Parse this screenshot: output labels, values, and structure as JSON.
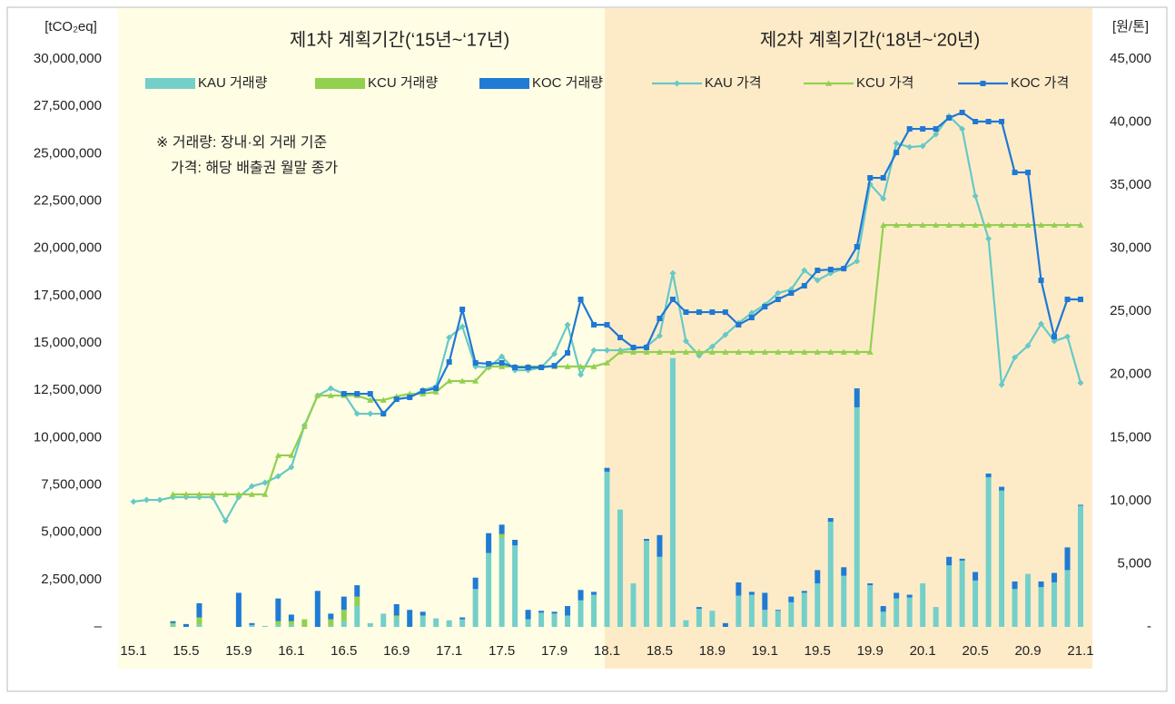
{
  "chart_data": {
    "type": "bar-line",
    "period_labels": [
      "제1차 계획기간(‘15년~‘17년)",
      "제2차 계획기간(‘18년~‘20년)"
    ],
    "y_label": "[tCO₂eq]",
    "y2_label": "[원/톤]",
    "note": [
      "※ 거래량: 장내·외 거래 기준",
      "가격: 해당 배출권 월말 종가"
    ],
    "categories": [
      "15.1",
      null,
      null,
      null,
      "15.5",
      null,
      null,
      null,
      "15.9",
      null,
      null,
      null,
      "16.1",
      null,
      null,
      null,
      "16.5",
      null,
      null,
      null,
      "16.9",
      null,
      null,
      null,
      "17.1",
      null,
      null,
      null,
      "17.5",
      null,
      null,
      null,
      "17.9",
      null,
      null,
      null,
      "18.1",
      null,
      null,
      null,
      "18.5",
      null,
      null,
      null,
      "18.9",
      null,
      null,
      null,
      "19.1",
      null,
      null,
      null,
      "19.5",
      null,
      null,
      null,
      "19.9",
      null,
      null,
      null,
      "20.1",
      null,
      null,
      null,
      "20.5",
      null,
      null,
      null,
      "20.9",
      null,
      null,
      null,
      "21.1"
    ],
    "ylim": [
      0,
      30000000
    ],
    "yticks": [
      {
        "value": 0,
        "label": "–"
      },
      {
        "value": 2500000,
        "label": "2,500,000"
      },
      {
        "value": 5000000,
        "label": "5,000,000"
      },
      {
        "value": 7500000,
        "label": "7,500,000"
      },
      {
        "value": 10000000,
        "label": "10,000,000"
      },
      {
        "value": 12500000,
        "label": "12,500,000"
      },
      {
        "value": 15000000,
        "label": "15,000,000"
      },
      {
        "value": 17500000,
        "label": "17,500,000"
      },
      {
        "value": 20000000,
        "label": "20,000,000"
      },
      {
        "value": 22500000,
        "label": "22,500,000"
      },
      {
        "value": 25000000,
        "label": "25,000,000"
      },
      {
        "value": 27500000,
        "label": "27,500,000"
      },
      {
        "value": 30000000,
        "label": "30,000,000"
      }
    ],
    "y2lim": [
      0,
      45000
    ],
    "y2ticks": [
      {
        "value": 0,
        "label": "-"
      },
      {
        "value": 5000,
        "label": "5,000"
      },
      {
        "value": 10000,
        "label": "10,000"
      },
      {
        "value": 15000,
        "label": "15,000"
      },
      {
        "value": 20000,
        "label": "20,000"
      },
      {
        "value": 25000,
        "label": "25,000"
      },
      {
        "value": 30000,
        "label": "30,000"
      },
      {
        "value": 35000,
        "label": "35,000"
      },
      {
        "value": 40000,
        "label": "40,000"
      },
      {
        "value": 45000,
        "label": "45,000"
      }
    ],
    "grid": false,
    "series": [
      {
        "name": "KAU 거래량",
        "type": "bar",
        "axis": "y",
        "color": "#74cfc9",
        "values": [
          0,
          0,
          0,
          100000,
          0,
          100000,
          0,
          0,
          0,
          100000,
          50000,
          100000,
          100000,
          0,
          0,
          50000,
          300000,
          1100000,
          200000,
          700000,
          500000,
          0,
          600000,
          450000,
          350000,
          400000,
          2000000,
          3900000,
          4700000,
          4300000,
          400000,
          750000,
          700000,
          600000,
          1400000,
          1700000,
          8200000,
          6200000,
          2300000,
          4550000,
          3700000,
          14200000,
          350000,
          950000,
          850000,
          0,
          1650000,
          1700000,
          900000,
          850000,
          1300000,
          1800000,
          2300000,
          5550000,
          2700000,
          11600000,
          2200000,
          800000,
          1500000,
          1550000,
          2300000,
          1050000,
          3250000,
          3500000,
          2450000,
          7900000,
          7200000,
          2000000,
          2800000,
          2100000,
          2350000,
          3000000,
          6400000
        ]
      },
      {
        "name": "KCU 거래량",
        "type": "bar",
        "axis": "y",
        "color": "#92d050",
        "values": [
          0,
          0,
          0,
          100000,
          0,
          400000,
          0,
          0,
          0,
          0,
          0,
          200000,
          200000,
          400000,
          0,
          350000,
          600000,
          500000,
          0,
          0,
          100000,
          0,
          0,
          0,
          0,
          0,
          0,
          0,
          200000,
          0,
          0,
          0,
          0,
          0,
          0,
          0,
          0,
          0,
          0,
          0,
          0,
          0,
          0,
          0,
          0,
          0,
          0,
          0,
          0,
          0,
          0,
          0,
          0,
          0,
          0,
          0,
          0,
          0,
          0,
          0,
          0,
          0,
          0,
          0,
          0,
          0,
          0,
          0,
          0,
          0,
          0,
          0,
          0
        ]
      },
      {
        "name": "KOC 거래량",
        "type": "bar",
        "axis": "y",
        "color": "#1f7bd4",
        "values": [
          0,
          0,
          0,
          100000,
          150000,
          750000,
          0,
          0,
          1800000,
          100000,
          0,
          1200000,
          350000,
          0,
          1900000,
          300000,
          700000,
          600000,
          0,
          0,
          600000,
          900000,
          200000,
          0,
          0,
          100000,
          600000,
          1050000,
          500000,
          300000,
          500000,
          100000,
          100000,
          500000,
          550000,
          150000,
          200000,
          0,
          0,
          100000,
          1150000,
          0,
          0,
          100000,
          0,
          200000,
          700000,
          150000,
          900000,
          50000,
          300000,
          100000,
          700000,
          200000,
          450000,
          1000000,
          100000,
          300000,
          300000,
          150000,
          0,
          0,
          450000,
          100000,
          450000,
          200000,
          200000,
          400000,
          0,
          300000,
          500000,
          1200000,
          50000
        ]
      },
      {
        "name": "KAU 가격",
        "type": "line",
        "axis": "y2",
        "marker": "diamond",
        "color": "#66c9c6",
        "values": [
          9920,
          10060,
          10060,
          10280,
          10280,
          10280,
          10280,
          8400,
          10280,
          11140,
          11430,
          11930,
          12650,
          15960,
          18330,
          18900,
          18470,
          16890,
          16890,
          16890,
          18040,
          18190,
          18760,
          19050,
          22930,
          23790,
          20630,
          20560,
          21420,
          20340,
          20340,
          20560,
          21640,
          23940,
          19980,
          21920,
          21920,
          21920,
          22060,
          22210,
          23070,
          28030,
          22640,
          21490,
          22210,
          23150,
          24080,
          24870,
          25520,
          26450,
          26740,
          28250,
          27460,
          28030,
          28390,
          28970,
          35080,
          33930,
          38310,
          38020,
          38100,
          39030,
          40470,
          39460,
          34140,
          30760,
          19190,
          21350,
          22280,
          24010,
          22640,
          23000,
          19340
        ]
      },
      {
        "name": "KCU 가격",
        "type": "line",
        "axis": "y2",
        "marker": "triangle",
        "color": "#92d050",
        "values": [
          null,
          null,
          null,
          10500,
          10500,
          10500,
          10500,
          10500,
          10500,
          10500,
          10500,
          13590,
          13590,
          15890,
          18330,
          18330,
          18330,
          18330,
          17970,
          17970,
          18260,
          18470,
          18470,
          18620,
          19480,
          19480,
          19480,
          20630,
          20630,
          20630,
          20630,
          20630,
          20630,
          20630,
          20630,
          20630,
          20920,
          21780,
          21780,
          21780,
          21780,
          21780,
          21780,
          21780,
          21780,
          21780,
          21780,
          21780,
          21780,
          21780,
          21780,
          21780,
          21780,
          21780,
          21780,
          21780,
          21780,
          31840,
          31840,
          31840,
          31840,
          31840,
          31840,
          31840,
          31840,
          31840,
          31840,
          31840,
          31840,
          31840,
          31840,
          31840,
          31840
        ]
      },
      {
        "name": "KOC 가격",
        "type": "line",
        "axis": "y2",
        "marker": "square",
        "color": "#1f78d4",
        "values": [
          null,
          null,
          null,
          null,
          null,
          null,
          null,
          null,
          null,
          null,
          null,
          null,
          null,
          null,
          null,
          null,
          18470,
          18470,
          18470,
          16890,
          18040,
          18190,
          18690,
          18900,
          20990,
          25160,
          20920,
          20850,
          20920,
          20560,
          20560,
          20560,
          20700,
          21710,
          25950,
          23940,
          23940,
          22930,
          22140,
          22140,
          24440,
          25950,
          24940,
          24940,
          24940,
          24940,
          23940,
          24510,
          25370,
          25950,
          26450,
          27030,
          28250,
          28320,
          28390,
          30120,
          35580,
          35580,
          37590,
          39460,
          39460,
          39460,
          40330,
          40760,
          40040,
          40040,
          40040,
          36010,
          36010,
          27460,
          23000,
          25950,
          25950
        ]
      }
    ]
  }
}
